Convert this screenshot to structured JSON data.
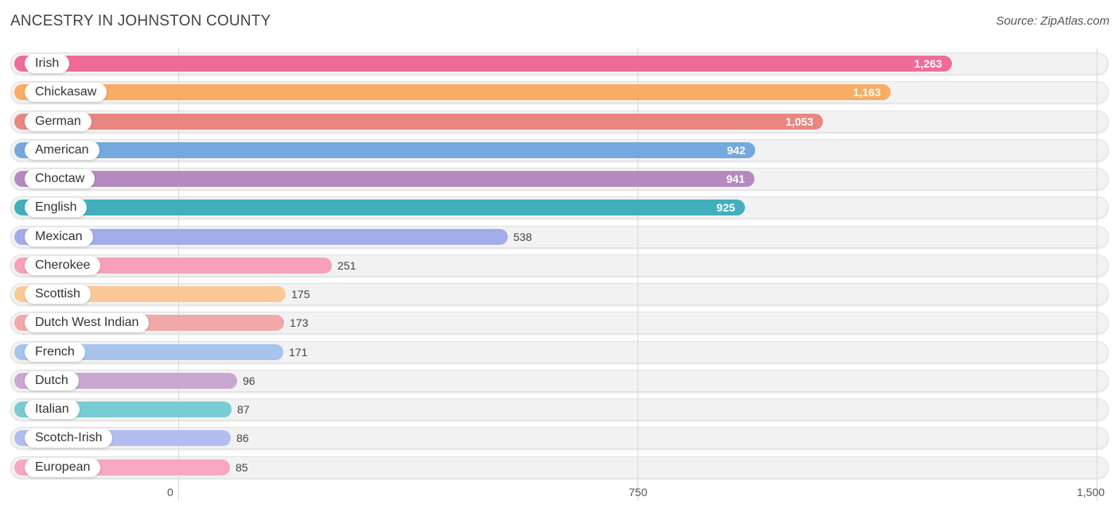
{
  "header": {
    "title": "ANCESTRY IN JOHNSTON COUNTY",
    "source": "Source: ZipAtlas.com"
  },
  "chart_data": {
    "type": "bar",
    "orientation": "horizontal",
    "title": "ANCESTRY IN JOHNSTON COUNTY",
    "xlabel": "",
    "ylabel": "",
    "xlim": [
      0,
      1500
    ],
    "grid": true,
    "ticks": [
      {
        "value": 0,
        "label": "0"
      },
      {
        "value": 750,
        "label": "750"
      },
      {
        "value": 1500,
        "label": "1,500"
      }
    ],
    "categories": [
      "Irish",
      "Chickasaw",
      "German",
      "American",
      "Choctaw",
      "English",
      "Mexican",
      "Cherokee",
      "Scottish",
      "Dutch West Indian",
      "French",
      "Dutch",
      "Italian",
      "Scotch-Irish",
      "European"
    ],
    "values": [
      1263,
      1163,
      1053,
      942,
      941,
      925,
      538,
      251,
      175,
      173,
      171,
      96,
      87,
      86,
      85
    ],
    "value_labels": [
      "1,263",
      "1,163",
      "1,053",
      "942",
      "941",
      "925",
      "538",
      "251",
      "175",
      "173",
      "171",
      "96",
      "87",
      "86",
      "85"
    ],
    "colors": [
      "#f06b96",
      "#f9ac63",
      "#e8867f",
      "#74a8df",
      "#b58ac0",
      "#41afbd",
      "#a3acea",
      "#f7a0ba",
      "#fbc995",
      "#f0a8a8",
      "#a6c4ec",
      "#c8a8d0",
      "#7accd2",
      "#b3bdef",
      "#f7a6c3"
    ]
  }
}
